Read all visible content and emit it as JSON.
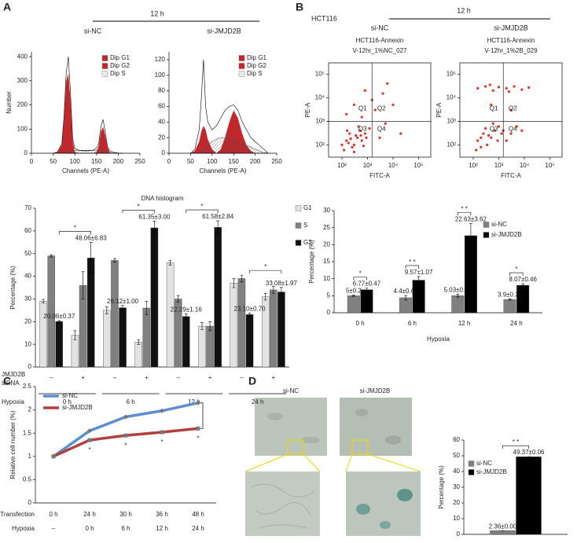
{
  "figure": {
    "panels": [
      "A",
      "B",
      "C",
      "D"
    ],
    "a_header": "12 h",
    "a_groups": [
      "si-NC",
      "si-JMJD2B"
    ],
    "b_cell_line": "HCT116",
    "b_header": "12 h",
    "b_groups": [
      "si-NC",
      "si-JMJD2B"
    ],
    "d_groups": [
      "si-NC",
      "si-JMJD2B"
    ]
  },
  "chart_data": [
    {
      "type": "area",
      "xlabel": "Channels (PE-A)",
      "ylabel": "Number",
      "xlim": [
        0,
        250
      ],
      "xticks": [
        0,
        50,
        100,
        150,
        200,
        250
      ],
      "ylim": [
        0,
        420
      ],
      "yticks": [
        0,
        100,
        200,
        300,
        400
      ],
      "x": [
        50,
        60,
        70,
        75,
        80,
        85,
        90,
        95,
        100,
        110,
        120,
        130,
        140,
        150,
        155,
        160,
        165,
        170,
        175,
        180,
        190,
        200,
        210
      ],
      "series": [
        {
          "name": "Dip G1",
          "color": "#c0282d",
          "values": [
            0,
            4,
            35,
            140,
            300,
            330,
            220,
            50,
            5,
            0,
            0,
            0,
            0,
            0,
            0,
            0,
            0,
            0,
            0,
            0,
            0,
            0,
            0
          ]
        },
        {
          "name": "Dip G2",
          "color": "#c0282d",
          "values": [
            0,
            0,
            0,
            0,
            0,
            0,
            0,
            0,
            0,
            0,
            0,
            0,
            0,
            5,
            30,
            90,
            110,
            75,
            25,
            5,
            0,
            0,
            0
          ]
        },
        {
          "name": "Dip S",
          "color": "#555555",
          "hatched": true,
          "values": [
            0,
            0,
            0,
            0,
            2,
            5,
            8,
            10,
            12,
            12,
            12,
            12,
            12,
            12,
            12,
            10,
            8,
            5,
            2,
            0,
            0,
            0,
            0
          ]
        },
        {
          "color": "#000000",
          "values": [
            0,
            5,
            40,
            150,
            330,
            400,
            250,
            60,
            20,
            12,
            10,
            10,
            12,
            20,
            40,
            110,
            140,
            90,
            30,
            10,
            3,
            1,
            0
          ]
        }
      ]
    },
    {
      "type": "area",
      "xlabel": "Channels (PE-A)",
      "xlim": [
        0,
        250
      ],
      "xticks": [
        0,
        50,
        100,
        150,
        200,
        250
      ],
      "ylim": [
        0,
        130
      ],
      "yticks": [
        0,
        20,
        40,
        60,
        80,
        100,
        120
      ],
      "x": [
        50,
        60,
        70,
        75,
        80,
        85,
        90,
        100,
        110,
        120,
        130,
        140,
        150,
        160,
        170,
        180,
        190,
        200,
        210,
        220,
        230
      ],
      "series": [
        {
          "name": "Dip G1",
          "color": "#c0282d",
          "values": [
            0,
            3,
            15,
            28,
            35,
            30,
            18,
            5,
            0,
            0,
            0,
            0,
            0,
            0,
            0,
            0,
            0,
            0,
            0,
            0,
            0
          ]
        },
        {
          "name": "Dip G2",
          "color": "#c0282d",
          "values": [
            0,
            0,
            0,
            0,
            0,
            0,
            0,
            0,
            0,
            5,
            20,
            40,
            55,
            45,
            25,
            10,
            3,
            0,
            0,
            0,
            0
          ]
        },
        {
          "name": "Dip S",
          "color": "#555555",
          "hatched": true,
          "values": [
            0,
            0,
            0,
            2,
            5,
            8,
            10,
            15,
            18,
            20,
            20,
            20,
            18,
            15,
            12,
            10,
            8,
            5,
            3,
            1,
            0
          ]
        },
        {
          "color": "#000000",
          "values": [
            0,
            5,
            30,
            70,
            120,
            60,
            40,
            30,
            35,
            45,
            55,
            60,
            62,
            55,
            40,
            30,
            20,
            15,
            10,
            5,
            0
          ]
        }
      ]
    },
    {
      "type": "bar",
      "title": "DNA histogram",
      "ylabel": "Percentage (%)",
      "ylim": [
        0,
        70
      ],
      "yticks": [
        0,
        10,
        20,
        30,
        40,
        50,
        60,
        70
      ],
      "categories": [
        "–",
        "+",
        "–",
        "+",
        "–",
        "+",
        "–",
        "+"
      ],
      "row_labels": [
        "JMJD2B",
        "siRNA",
        "Hypoxia"
      ],
      "groups": [
        "0 h",
        "6 h",
        "12 h",
        "24 h"
      ],
      "significance": [
        "*",
        "*",
        "*",
        "*"
      ],
      "series": [
        {
          "name": "G1",
          "color": "#e2e2e2",
          "values": [
            29,
            14,
            25,
            11,
            46,
            18,
            37,
            31
          ],
          "errors": [
            0.8,
            2,
            1.5,
            1,
            1,
            1.5,
            2,
            1.5
          ]
        },
        {
          "name": "S",
          "color": "#808080",
          "values": [
            49,
            36,
            47,
            26,
            30,
            18,
            39,
            34
          ],
          "errors": [
            0.5,
            6,
            0.8,
            3,
            1.5,
            2,
            1.5,
            1.5
          ]
        },
        {
          "name": "G2",
          "color": "#111111",
          "values": [
            20.06,
            48.06,
            26.12,
            61.35,
            22.29,
            61.58,
            23.1,
            33.08
          ],
          "errors": [
            0.37,
            6.83,
            1.0,
            3.0,
            1.16,
            2.84,
            0.7,
            1.97
          ],
          "value_labels": [
            "20.06±0.37",
            "48.06±6.83",
            "26.12±1.00",
            "61.35±3.00",
            "22.29±1.16",
            "61.58±2.84",
            "23.10±0.70",
            "33.08±1.97"
          ]
        }
      ]
    },
    {
      "type": "scatter",
      "title": [
        "HCT116-Annexin",
        "V-12hr_1%NC_027"
      ],
      "xlabel": "FITC-A",
      "ylabel": "PE-A",
      "log": true,
      "xlim": [
        30,
        300000
      ],
      "ylim": [
        30,
        300000
      ],
      "xticks": [
        {
          "value": 100,
          "label": "10²"
        },
        {
          "value": 1000,
          "label": "10³"
        },
        {
          "value": 10000,
          "label": "10⁴"
        },
        {
          "value": 100000,
          "label": "10⁵"
        }
      ],
      "yticks": [
        {
          "value": 100,
          "label": "10²"
        },
        {
          "value": 1000,
          "label": "10³"
        },
        {
          "value": 10000,
          "label": "10⁴"
        },
        {
          "value": 100000,
          "label": "10⁵"
        }
      ],
      "gate_x": 1500,
      "gate_y": 1000,
      "quadrants": [
        "Q1",
        "Q2",
        "Q3",
        "Q4"
      ],
      "series": [
        {
          "color": "#d9332b",
          "x": [
            150,
            200,
            300,
            400,
            250,
            500,
            120,
            600,
            350,
            180,
            800,
            700,
            450,
            220,
            100,
            900,
            1200,
            300,
            550,
            160,
            3000,
            5000,
            2000,
            300,
            800,
            10000,
            4000,
            150,
            1500,
            20000,
            6000,
            600
          ],
          "values": [
            150,
            300,
            100,
            200,
            80,
            400,
            60,
            150,
            250,
            120,
            300,
            90,
            600,
            180,
            100,
            200,
            500,
            50,
            250,
            400,
            200,
            800,
            3000,
            5000,
            20000,
            5000,
            15000,
            2000,
            8000,
            300,
            40000,
            1500
          ]
        }
      ]
    },
    {
      "type": "scatter",
      "title": [
        "HCT116-Annexin",
        "V-12hr_1%2B_029"
      ],
      "xlabel": "FITC-A",
      "ylabel": "PE-A",
      "log": true,
      "xlim": [
        30,
        300000
      ],
      "ylim": [
        30,
        300000
      ],
      "xticks": [
        {
          "value": 100,
          "label": "10²"
        },
        {
          "value": 1000,
          "label": "10³"
        },
        {
          "value": 10000,
          "label": "10⁴"
        },
        {
          "value": 100000,
          "label": "10⁵"
        }
      ],
      "yticks": [
        {
          "value": 100,
          "label": "10²"
        },
        {
          "value": 1000,
          "label": "10³"
        },
        {
          "value": 10000,
          "label": "10⁴"
        },
        {
          "value": 100000,
          "label": "10⁵"
        }
      ],
      "gate_x": 1500,
      "gate_y": 1000,
      "quadrants": [
        "Q1",
        "Q2",
        "Q3",
        "Q4"
      ],
      "series": [
        {
          "color": "#d9332b",
          "x": [
            150,
            250,
            350,
            500,
            200,
            700,
            130,
            900,
            400,
            1000,
            1300,
            600,
            300,
            200,
            1500,
            150,
            300,
            600,
            1000,
            2000,
            4000,
            8000,
            15000,
            450,
            2500,
            3000,
            5000,
            2000,
            8000,
            500,
            3000
          ],
          "values": [
            150,
            300,
            100,
            200,
            80,
            400,
            60,
            150,
            250,
            600,
            300,
            800,
            500,
            200,
            400,
            25000,
            30000,
            20000,
            28000,
            25000,
            30000,
            22000,
            27000,
            35000,
            18000,
            300,
            600,
            150,
            400,
            5000,
            3000
          ]
        }
      ]
    },
    {
      "type": "bar",
      "ylabel": "Percentage (%)",
      "xlabel": "Hypoxia",
      "ylim": [
        0,
        30
      ],
      "yticks": [
        0,
        5,
        10,
        15,
        20,
        25,
        30
      ],
      "categories": [
        "0 h",
        "6 h",
        "12 h",
        "24 h"
      ],
      "significance": [
        "*",
        "* *",
        "* *",
        "*"
      ],
      "series": [
        {
          "name": "si-NC",
          "color": "#808080",
          "values": [
            5,
            4.4,
            5.03,
            3.9
          ],
          "errors": [
            0.2,
            0.67,
            0.44,
            0.21
          ],
          "value_labels": [
            "5±0.2",
            "4.4±0.67",
            "5.03±0.44",
            "3.9±0.21"
          ]
        },
        {
          "name": "si-JMJD2B",
          "color": "#000000",
          "values": [
            6.77,
            9.57,
            22.63,
            8.07
          ],
          "errors": [
            0.47,
            1.07,
            3.62,
            0.46
          ],
          "value_labels": [
            "6.77±0.47",
            "9.57±1.07",
            "22.63±3.62",
            "8.07±0.46"
          ]
        }
      ]
    },
    {
      "type": "line",
      "ylabel": "Relative cell number (%)",
      "ylim": [
        0,
        2.5
      ],
      "yticks": [
        0,
        0.5,
        1,
        1.5,
        2,
        2.5
      ],
      "categories": [
        "0 h",
        "24 h",
        "30 h",
        "36 h",
        "48 h"
      ],
      "row_labels": [
        "Transfection",
        "Hypoxia"
      ],
      "hypoxia": [
        "–",
        "0 h",
        "6 h",
        "12 h",
        "24 h"
      ],
      "annotations": [
        "*",
        "*",
        "*",
        "*"
      ],
      "series": [
        {
          "name": "si-NC",
          "color": "#5b8fd0",
          "values": [
            1,
            1.55,
            1.85,
            1.98,
            2.15
          ]
        },
        {
          "name": "si-JMJD2B",
          "color": "#b0413e",
          "values": [
            1,
            1.35,
            1.45,
            1.52,
            1.6
          ]
        }
      ]
    },
    {
      "type": "bar",
      "ylabel": "Percentage (%)",
      "ylim": [
        0,
        60
      ],
      "yticks": [
        0,
        10,
        20,
        30,
        40,
        50,
        60
      ],
      "significance": [
        "* *"
      ],
      "series": [
        {
          "name": "si-NC",
          "color": "#808080",
          "values": [
            2.36
          ],
          "errors": [
            0
          ],
          "value_labels": [
            "2.36±0.00"
          ]
        },
        {
          "name": "si-JMJD2B",
          "color": "#000000",
          "values": [
            49.37
          ],
          "errors": [
            0.06
          ],
          "value_labels": [
            "49.37±0.06"
          ]
        }
      ]
    }
  ]
}
